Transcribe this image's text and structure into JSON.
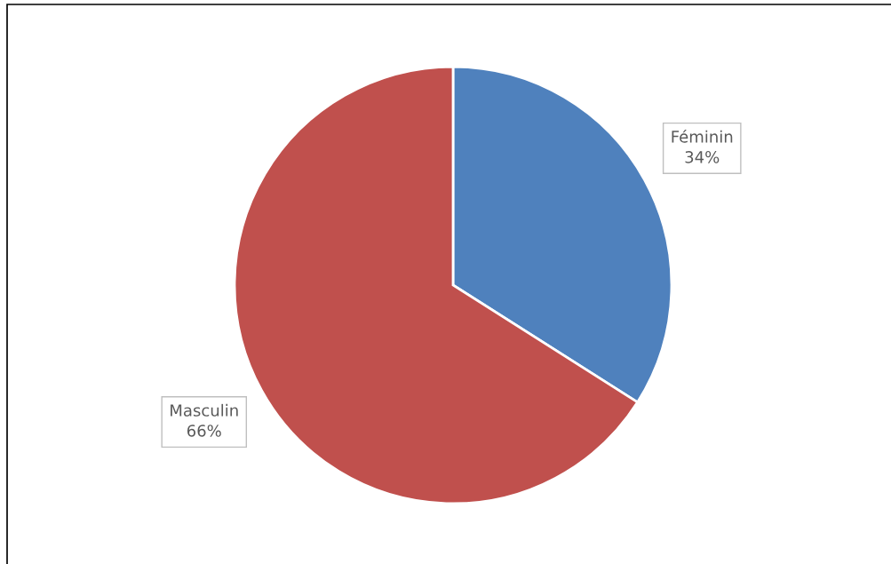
{
  "chart_data": {
    "type": "pie",
    "categories": [
      "Féminin",
      "Masculin"
    ],
    "values": [
      34,
      66
    ],
    "colors": [
      "#4f81bd",
      "#c0504d"
    ],
    "value_labels": [
      "34%",
      "66%"
    ],
    "legend": false
  }
}
